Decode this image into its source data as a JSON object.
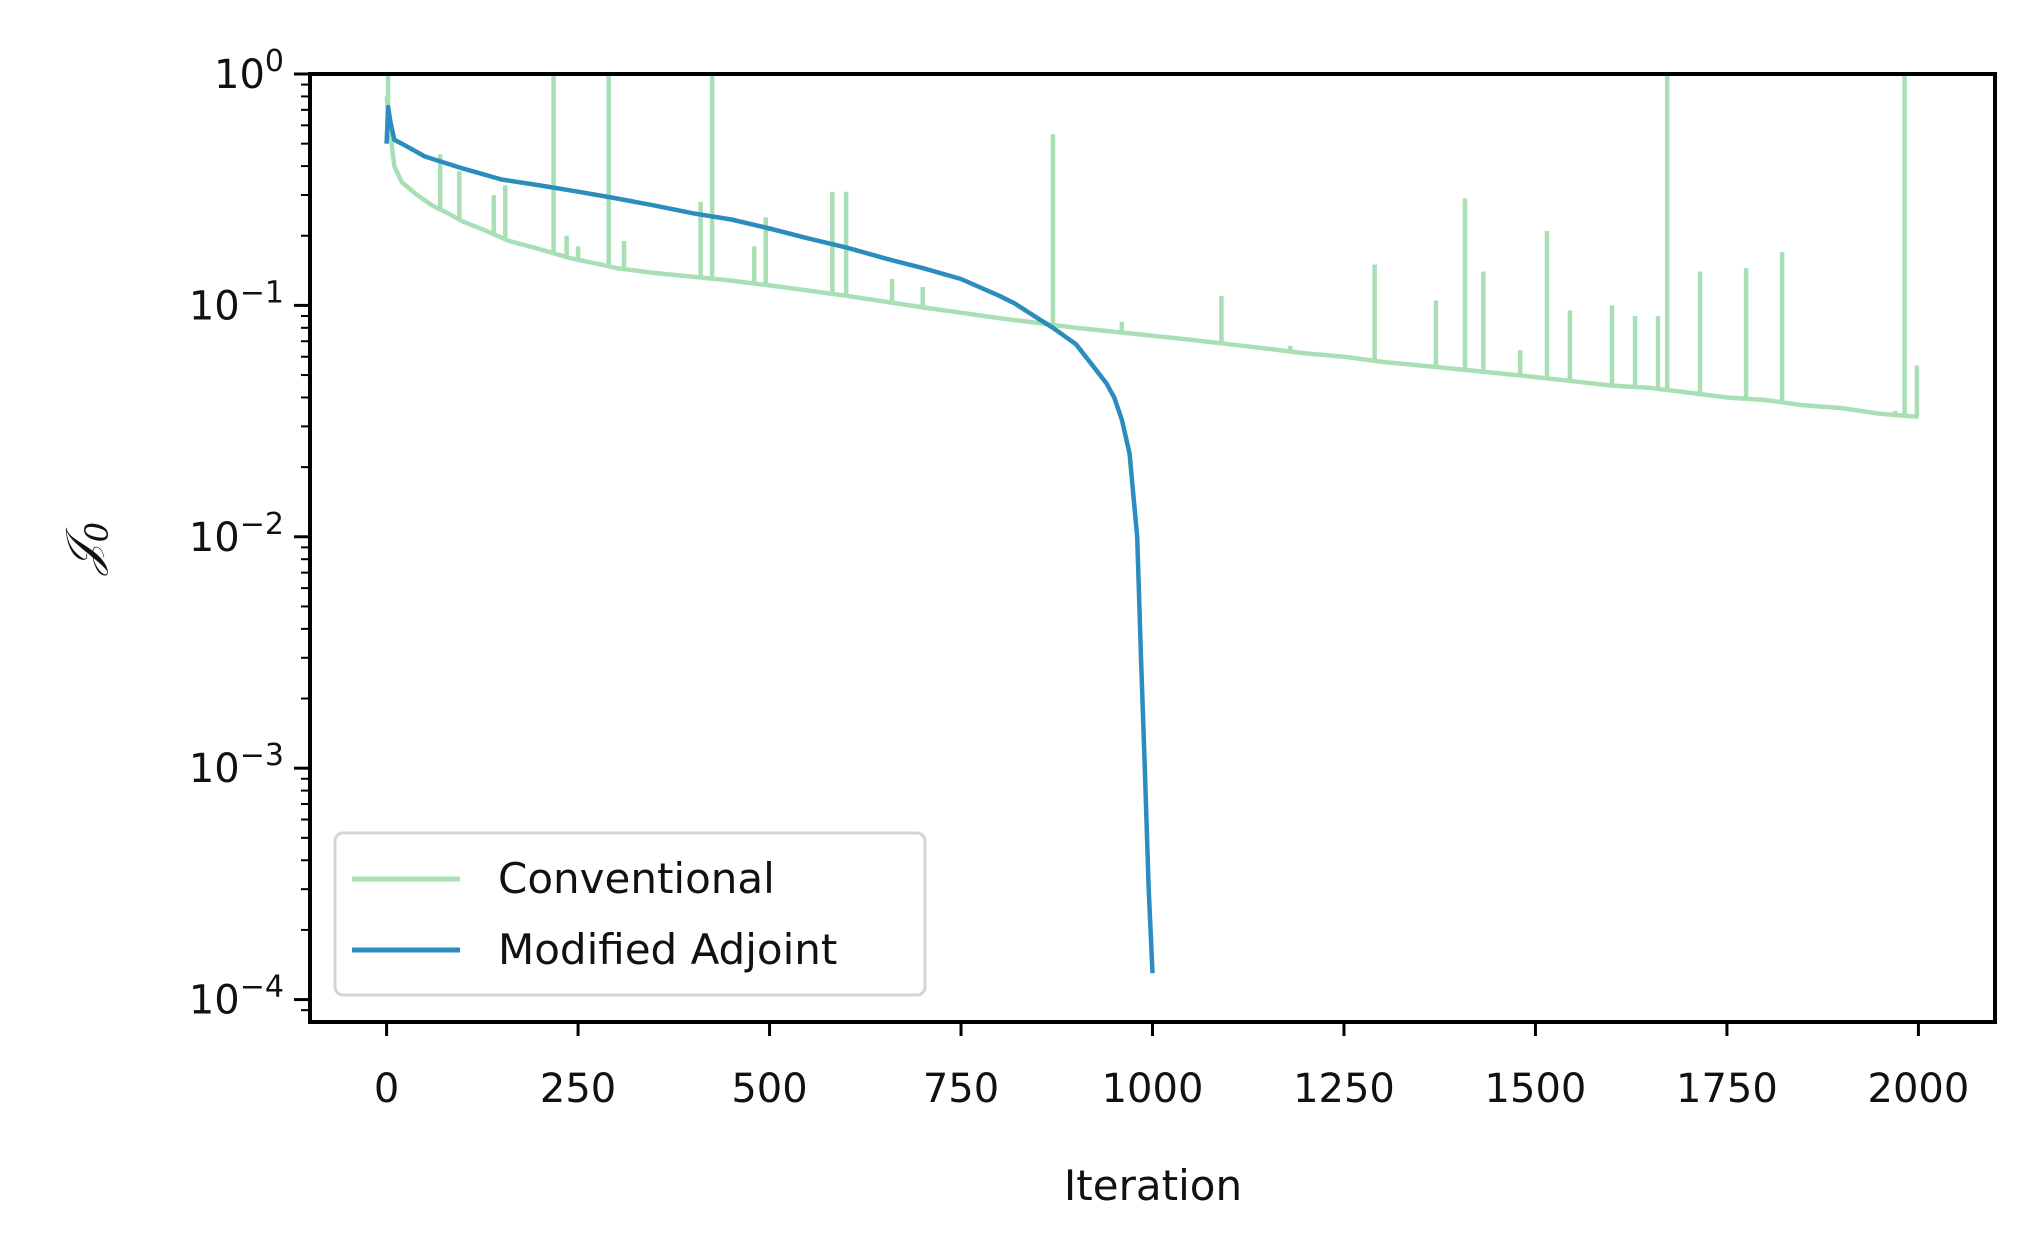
{
  "chart_data": {
    "type": "line",
    "title": "",
    "xlabel": "Iteration",
    "ylabel": "𝒥",
    "ylabel_subscript": "0",
    "yscale": "log",
    "xlim": [
      -100,
      2100
    ],
    "ylim": [
      8e-05,
      1
    ],
    "xticks": [
      0,
      250,
      500,
      750,
      1000,
      1250,
      1500,
      1750,
      2000
    ],
    "xtick_labels": [
      "0",
      "250",
      "500",
      "750",
      "1000",
      "1250",
      "1500",
      "1750",
      "2000"
    ],
    "yticks": [
      0.0001,
      0.001,
      0.01,
      0.1,
      1
    ],
    "ytick_labels": [
      {
        "base": "10",
        "exp": "−4"
      },
      {
        "base": "10",
        "exp": "−3"
      },
      {
        "base": "10",
        "exp": "−2"
      },
      {
        "base": "10",
        "exp": "−1"
      },
      {
        "base": "10",
        "exp": "0"
      }
    ],
    "grid": false,
    "legend_position": "lower-left",
    "series": [
      {
        "name": "Conventional",
        "color": "#a8dfb4",
        "x": [
          0,
          5,
          10,
          20,
          40,
          60,
          80,
          100,
          130,
          160,
          200,
          240,
          280,
          300,
          350,
          400,
          450,
          500,
          550,
          600,
          650,
          700,
          750,
          800,
          850,
          900,
          950,
          1000,
          1050,
          1100,
          1150,
          1200,
          1250,
          1300,
          1350,
          1400,
          1450,
          1500,
          1550,
          1600,
          1650,
          1700,
          1750,
          1800,
          1850,
          1900,
          1950,
          2000
        ],
        "y": [
          0.8,
          0.55,
          0.4,
          0.34,
          0.3,
          0.27,
          0.25,
          0.23,
          0.21,
          0.19,
          0.175,
          0.16,
          0.15,
          0.145,
          0.138,
          0.133,
          0.128,
          0.122,
          0.116,
          0.11,
          0.104,
          0.098,
          0.093,
          0.088,
          0.084,
          0.08,
          0.077,
          0.074,
          0.071,
          0.068,
          0.065,
          0.062,
          0.06,
          0.057,
          0.055,
          0.053,
          0.051,
          0.049,
          0.047,
          0.045,
          0.044,
          0.042,
          0.04,
          0.039,
          0.037,
          0.036,
          0.034,
          0.033
        ],
        "spikes": [
          {
            "x": 2,
            "y": 1.0
          },
          {
            "x": 70,
            "y": 0.45
          },
          {
            "x": 95,
            "y": 0.38
          },
          {
            "x": 140,
            "y": 0.3
          },
          {
            "x": 155,
            "y": 0.33
          },
          {
            "x": 218,
            "y": 1.0
          },
          {
            "x": 235,
            "y": 0.2
          },
          {
            "x": 250,
            "y": 0.18
          },
          {
            "x": 290,
            "y": 1.0
          },
          {
            "x": 310,
            "y": 0.19
          },
          {
            "x": 410,
            "y": 0.28
          },
          {
            "x": 425,
            "y": 1.0
          },
          {
            "x": 480,
            "y": 0.18
          },
          {
            "x": 495,
            "y": 0.24
          },
          {
            "x": 582,
            "y": 0.31
          },
          {
            "x": 600,
            "y": 0.31
          },
          {
            "x": 660,
            "y": 0.13
          },
          {
            "x": 700,
            "y": 0.12
          },
          {
            "x": 870,
            "y": 0.55
          },
          {
            "x": 960,
            "y": 0.085
          },
          {
            "x": 1090,
            "y": 0.11
          },
          {
            "x": 1180,
            "y": 0.067
          },
          {
            "x": 1290,
            "y": 0.15
          },
          {
            "x": 1370,
            "y": 0.105
          },
          {
            "x": 1408,
            "y": 0.29
          },
          {
            "x": 1432,
            "y": 0.14
          },
          {
            "x": 1480,
            "y": 0.064
          },
          {
            "x": 1515,
            "y": 0.21
          },
          {
            "x": 1545,
            "y": 0.095
          },
          {
            "x": 1600,
            "y": 0.1
          },
          {
            "x": 1630,
            "y": 0.09
          },
          {
            "x": 1660,
            "y": 0.09
          },
          {
            "x": 1672,
            "y": 1.0
          },
          {
            "x": 1715,
            "y": 0.14
          },
          {
            "x": 1775,
            "y": 0.145
          },
          {
            "x": 1822,
            "y": 0.17
          },
          {
            "x": 1910,
            "y": 0.036
          },
          {
            "x": 1970,
            "y": 0.035
          },
          {
            "x": 1982,
            "y": 1.0
          },
          {
            "x": 1998,
            "y": 0.055
          }
        ]
      },
      {
        "name": "Modified Adjoint",
        "color": "#2b8cbe",
        "x": [
          0,
          2,
          5,
          10,
          20,
          50,
          100,
          150,
          200,
          250,
          300,
          350,
          400,
          450,
          500,
          550,
          600,
          650,
          700,
          750,
          800,
          820,
          850,
          870,
          900,
          920,
          940,
          950,
          960,
          970,
          980,
          985,
          990,
          995,
          1000
        ],
        "y": [
          0.5,
          0.72,
          0.62,
          0.52,
          0.5,
          0.44,
          0.39,
          0.35,
          0.33,
          0.31,
          0.29,
          0.27,
          0.25,
          0.235,
          0.215,
          0.195,
          0.178,
          0.16,
          0.145,
          0.13,
          0.11,
          0.102,
          0.088,
          0.08,
          0.068,
          0.056,
          0.046,
          0.04,
          0.032,
          0.023,
          0.01,
          0.003,
          0.001,
          0.0003,
          0.00013
        ]
      }
    ]
  }
}
